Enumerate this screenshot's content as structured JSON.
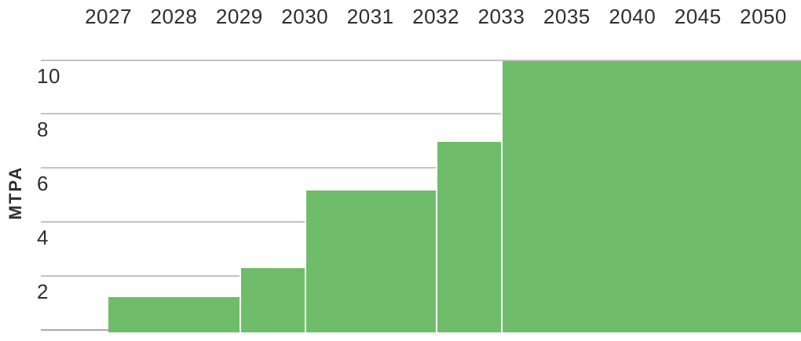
{
  "chart_data": {
    "type": "area",
    "variant": "step",
    "title": "",
    "xlabel": "",
    "ylabel": "MTPA",
    "x_axis_position": "top",
    "categories": [
      "2027",
      "2028",
      "2029",
      "2030",
      "2031",
      "2032",
      "2033",
      "2035",
      "2040",
      "2045",
      "2050"
    ],
    "values": [
      1.25,
      1.25,
      2.3,
      5.2,
      5.2,
      7,
      10,
      10,
      10,
      10,
      10
    ],
    "ylim": [
      0,
      10
    ],
    "yticks": [
      10,
      8,
      6,
      4,
      2
    ],
    "grid": "horizontal",
    "legend": "none",
    "colors": {
      "area": "#6fbc6b",
      "gridline": "#c3c3c3",
      "baseline": "#a8a8a8",
      "text": "#2e2e2e",
      "segment_divider": "#ffffff"
    }
  }
}
